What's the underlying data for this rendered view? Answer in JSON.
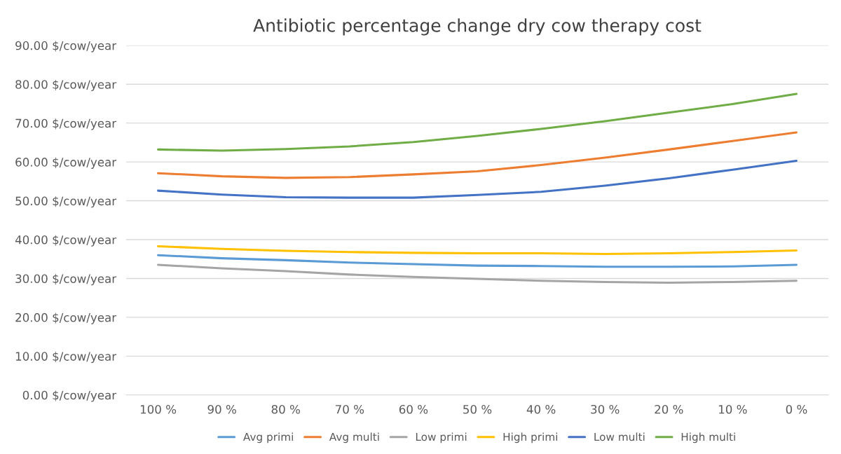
{
  "chart_data": {
    "type": "line",
    "title": "Antibiotic percentage change dry cow therapy cost",
    "categories": [
      "100 %",
      "90 %",
      "80 %",
      "70 %",
      "60 %",
      "50 %",
      "40 %",
      "30 %",
      "20 %",
      "10 %",
      "0 %"
    ],
    "series": [
      {
        "name": "Avg primi",
        "color": "#5b9bd5",
        "values": [
          36.0,
          35.2,
          34.7,
          34.1,
          33.7,
          33.3,
          33.2,
          33.0,
          33.0,
          33.1,
          33.5
        ]
      },
      {
        "name": "Avg multi",
        "color": "#ed7d31",
        "values": [
          57.1,
          56.3,
          55.9,
          56.1,
          56.8,
          57.6,
          59.2,
          61.1,
          63.2,
          65.4,
          67.6
        ]
      },
      {
        "name": "Low primi",
        "color": "#a5a5a5",
        "values": [
          33.5,
          32.6,
          31.9,
          31.0,
          30.4,
          29.9,
          29.4,
          29.1,
          28.9,
          29.1,
          29.4
        ]
      },
      {
        "name": "High primi",
        "color": "#ffc000",
        "values": [
          38.3,
          37.6,
          37.1,
          36.8,
          36.6,
          36.5,
          36.5,
          36.3,
          36.5,
          36.8,
          37.2
        ]
      },
      {
        "name": "Low multi",
        "color": "#4472c4",
        "values": [
          52.6,
          51.6,
          50.9,
          50.8,
          50.8,
          51.5,
          52.3,
          53.9,
          55.8,
          58.0,
          60.3
        ]
      },
      {
        "name": "High multi",
        "color": "#70ad47",
        "values": [
          63.2,
          62.9,
          63.3,
          64.0,
          65.1,
          66.7,
          68.5,
          70.5,
          72.7,
          74.9,
          77.5
        ]
      }
    ],
    "ylim": [
      0,
      90
    ],
    "yticks": [
      {
        "value": 0,
        "label": "0.00 $/cow/year"
      },
      {
        "value": 10,
        "label": "10.00 $/cow/year"
      },
      {
        "value": 20,
        "label": "20.00 $/cow/year"
      },
      {
        "value": 30,
        "label": "30.00 $/cow/year"
      },
      {
        "value": 40,
        "label": "40.00 $/cow/year"
      },
      {
        "value": 50,
        "label": "50.00 $/cow/year"
      },
      {
        "value": 60,
        "label": "60.00 $/cow/year"
      },
      {
        "value": 70,
        "label": "70.00 $/cow/year"
      },
      {
        "value": 80,
        "label": "80.00 $/cow/year"
      },
      {
        "value": 90,
        "label": "90.00 $/cow/year"
      }
    ],
    "grid": "y",
    "legend": "bottom",
    "marker": "none",
    "line_style": "solid"
  }
}
